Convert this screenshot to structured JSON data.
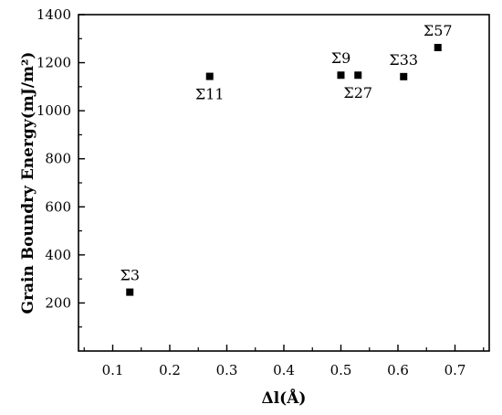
{
  "chart_data": {
    "type": "scatter",
    "title": "",
    "xlabel": "Δl(Å)",
    "ylabel": "Grain Boundry Energy(mJ/m²)",
    "xlim": [
      0.04,
      0.76
    ],
    "ylim": [
      0,
      1400
    ],
    "xticks": [
      "0.1",
      "0.2",
      "0.3",
      "0.4",
      "0.5",
      "0.6",
      "0.7"
    ],
    "yticks": [
      "200",
      "400",
      "600",
      "800",
      "1000",
      "1200",
      "1400"
    ],
    "grid": false,
    "legend": "none",
    "marker": "square",
    "marker_color": "#000000",
    "points": [
      {
        "label": "Σ3",
        "x": 0.13,
        "y": 245,
        "label_pos": "above"
      },
      {
        "label": "Σ11",
        "x": 0.27,
        "y": 1143,
        "label_pos": "below"
      },
      {
        "label": "Σ9",
        "x": 0.5,
        "y": 1148,
        "label_pos": "above"
      },
      {
        "label": "Σ27",
        "x": 0.53,
        "y": 1148,
        "label_pos": "below"
      },
      {
        "label": "Σ33",
        "x": 0.61,
        "y": 1142,
        "label_pos": "above"
      },
      {
        "label": "Σ57",
        "x": 0.67,
        "y": 1263,
        "label_pos": "above"
      }
    ]
  }
}
